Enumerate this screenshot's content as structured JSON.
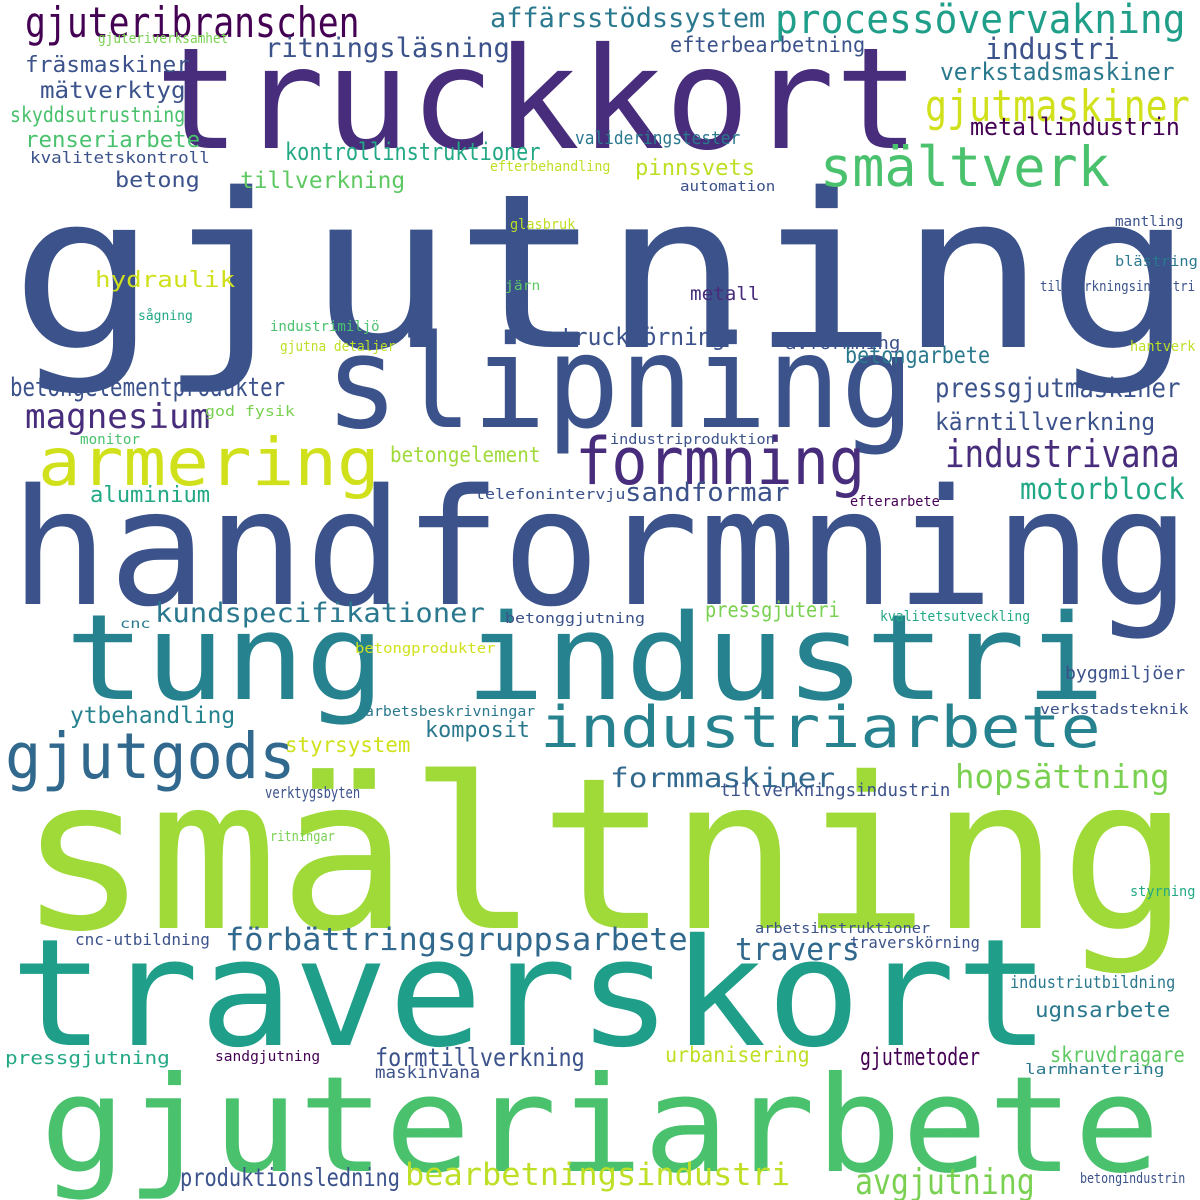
{
  "words": [
    {
      "text": "gjutning",
      "color": "#3b528b"
    },
    {
      "text": "smältning",
      "color": "#a0da39"
    },
    {
      "text": "handformning",
      "color": "#3b528b"
    },
    {
      "text": "traverskort",
      "color": "#1f9e89"
    },
    {
      "text": "tung industri",
      "color": "#26828e"
    },
    {
      "text": "truckkort",
      "color": "#472d7b"
    },
    {
      "text": "gjuteriarbete",
      "color": "#4ac16d"
    },
    {
      "text": "slipning",
      "color": "#3b528b"
    },
    {
      "text": "armering",
      "color": "#d0e11c"
    },
    {
      "text": "formning",
      "color": "#472d7b"
    },
    {
      "text": "industriarbete",
      "color": "#26828e"
    },
    {
      "text": "smältverk",
      "color": "#4ac16d"
    },
    {
      "text": "gjutgods",
      "color": "#31688e"
    },
    {
      "text": "gjuteribranschen",
      "color": "#440154"
    },
    {
      "text": "processövervakning",
      "color": "#1f9e89"
    },
    {
      "text": "gjutmaskiner",
      "color": "#d0e11c"
    },
    {
      "text": "förbättringsgruppsarbete",
      "color": "#31688e"
    },
    {
      "text": "bearbetningsindustri",
      "color": "#bddf26"
    },
    {
      "text": "industrivana",
      "color": "#472d7b"
    },
    {
      "text": "hopsättning",
      "color": "#7ad151"
    },
    {
      "text": "magnesium",
      "color": "#472d7b"
    },
    {
      "text": "motorblock",
      "color": "#22a884"
    },
    {
      "text": "avgjutning",
      "color": "#7ad151"
    },
    {
      "text": "travers",
      "color": "#31688e"
    },
    {
      "text": "affärsstödssystem",
      "color": "#2a788e"
    },
    {
      "text": "industri",
      "color": "#3b528b"
    },
    {
      "text": "kundspecifikationer",
      "color": "#2a788e"
    },
    {
      "text": "formmaskiner",
      "color": "#31688e"
    },
    {
      "text": "ritningsläsning",
      "color": "#3b528b"
    },
    {
      "text": "metallindustrin",
      "color": "#440154"
    },
    {
      "text": "pressgjutmaskiner",
      "color": "#3b528b"
    },
    {
      "text": "kontrollinstruktioner",
      "color": "#22a884"
    },
    {
      "text": "verkstadsmaskiner",
      "color": "#2a788e"
    },
    {
      "text": "truckkörning",
      "color": "#3b528b"
    },
    {
      "text": "betongelementprodukter",
      "color": "#3b528b"
    },
    {
      "text": "sandformar",
      "color": "#3b528b"
    },
    {
      "text": "kärntillverkning",
      "color": "#3b528b"
    },
    {
      "text": "betongarbete",
      "color": "#2a788e"
    },
    {
      "text": "produktionsledning",
      "color": "#3b528b"
    },
    {
      "text": "formtillverkning",
      "color": "#3b528b"
    },
    {
      "text": "gjutmetoder",
      "color": "#440154"
    },
    {
      "text": "ytbehandling",
      "color": "#26828e"
    },
    {
      "text": "fräsmaskiner",
      "color": "#3b528b"
    },
    {
      "text": "mätverktyg",
      "color": "#3b528b"
    },
    {
      "text": "skyddsutrustning",
      "color": "#4ac16d"
    },
    {
      "text": "renseriarbete",
      "color": "#4ac16d"
    },
    {
      "text": "aluminium",
      "color": "#22a884"
    },
    {
      "text": "pinnsvets",
      "color": "#bddf26"
    },
    {
      "text": "tillverkning",
      "color": "#5ec962"
    },
    {
      "text": "betong",
      "color": "#3b528b"
    },
    {
      "text": "efterbearbetning",
      "color": "#3b528b"
    },
    {
      "text": "hydraulik",
      "color": "#d0e11c"
    },
    {
      "text": "komposit",
      "color": "#2a788e"
    },
    {
      "text": "ugnsarbete",
      "color": "#2a788e"
    },
    {
      "text": "skruvdragare",
      "color": "#5ec962"
    },
    {
      "text": "urbanisering",
      "color": "#bddf26"
    },
    {
      "text": "styrsystem",
      "color": "#d0e11c"
    },
    {
      "text": "betongelement",
      "color": "#a0da39"
    },
    {
      "text": "pressgjuteri",
      "color": "#7ad151"
    },
    {
      "text": "byggmiljöer",
      "color": "#3b528b"
    },
    {
      "text": "metall",
      "color": "#472d7b"
    },
    {
      "text": "valideringstester",
      "color": "#2a788e"
    },
    {
      "text": "avformning",
      "color": "#3b528b"
    },
    {
      "text": "verktygsbyten",
      "color": "#3b528b"
    },
    {
      "text": "tillverkningsindustrin",
      "color": "#3b528b"
    },
    {
      "text": "cnc-utbildning",
      "color": "#3b528b"
    },
    {
      "text": "traverskörning",
      "color": "#3b528b"
    },
    {
      "text": "industriutbildning",
      "color": "#2a788e"
    },
    {
      "text": "pressgjutning",
      "color": "#22a884"
    },
    {
      "text": "maskinvana",
      "color": "#3b528b"
    },
    {
      "text": "sandgjutning",
      "color": "#440154"
    },
    {
      "text": "gjuteriverksamhet",
      "color": "#7ad151"
    },
    {
      "text": "kvalitetskontroll",
      "color": "#3b528b"
    },
    {
      "text": "efterbehandling",
      "color": "#bddf26"
    },
    {
      "text": "automation",
      "color": "#3b528b"
    },
    {
      "text": "glasbruk",
      "color": "#bddf26"
    },
    {
      "text": "mantling",
      "color": "#3b528b"
    },
    {
      "text": "blästring",
      "color": "#2a788e"
    },
    {
      "text": "tillverkningsindustri",
      "color": "#3b528b"
    },
    {
      "text": "järn",
      "color": "#5ec962"
    },
    {
      "text": "sågning",
      "color": "#22a884"
    },
    {
      "text": "industrimiljö",
      "color": "#4ac16d"
    },
    {
      "text": "gjutna detaljer",
      "color": "#bddf26"
    },
    {
      "text": "hantverk",
      "color": "#bddf26"
    },
    {
      "text": "monitor",
      "color": "#4ac16d"
    },
    {
      "text": "god fysik",
      "color": "#7ad151"
    },
    {
      "text": "industriproduktion",
      "color": "#3b528b"
    },
    {
      "text": "telefonintervju",
      "color": "#3b528b"
    },
    {
      "text": "efterarbete",
      "color": "#440154"
    },
    {
      "text": "cnc",
      "color": "#2a788e"
    },
    {
      "text": "betonggjutning",
      "color": "#3b528b"
    },
    {
      "text": "kvalitetsutveckling",
      "color": "#22a884"
    },
    {
      "text": "betongprodukter",
      "color": "#d0e11c"
    },
    {
      "text": "arbetsbeskrivningar",
      "color": "#2a788e"
    },
    {
      "text": "verkstadsteknik",
      "color": "#3b528b"
    },
    {
      "text": "ritningar",
      "color": "#7ad151"
    },
    {
      "text": "styrning",
      "color": "#22a884"
    },
    {
      "text": "arbetsinstruktioner",
      "color": "#3b528b"
    },
    {
      "text": "larmhantering",
      "color": "#2a788e"
    },
    {
      "text": "betongindustrin",
      "color": "#3b528b"
    }
  ]
}
